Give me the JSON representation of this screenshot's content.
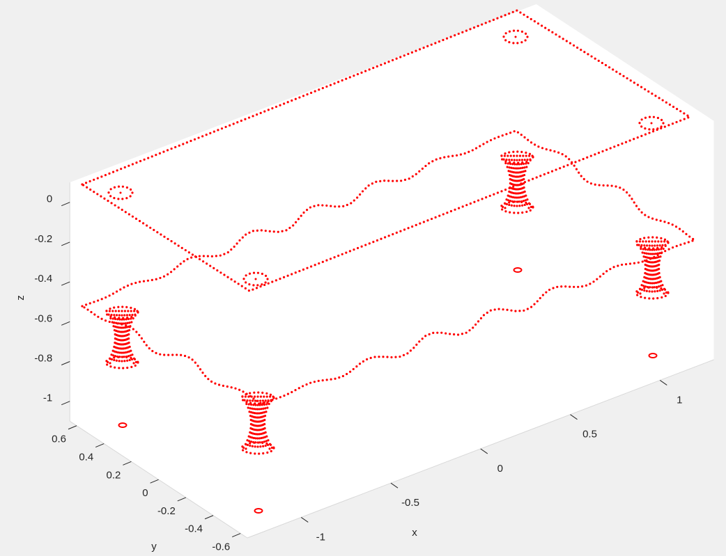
{
  "chart_data": {
    "type": "scatter3d",
    "xlabel": "x",
    "ylabel": "y",
    "zlabel": "z",
    "xlim": [
      -1.3,
      1.3
    ],
    "ylim": [
      -0.65,
      0.65
    ],
    "zlim": [
      -1.1,
      0.1
    ],
    "xticks": [
      -1,
      -0.5,
      0,
      0.5,
      1
    ],
    "yticks": [
      -0.6,
      -0.4,
      -0.2,
      0,
      0.2,
      0.4,
      0.6
    ],
    "zticks": [
      -1,
      -0.8,
      -0.6,
      -0.4,
      -0.2,
      0
    ],
    "color": "#ff0000"
  }
}
